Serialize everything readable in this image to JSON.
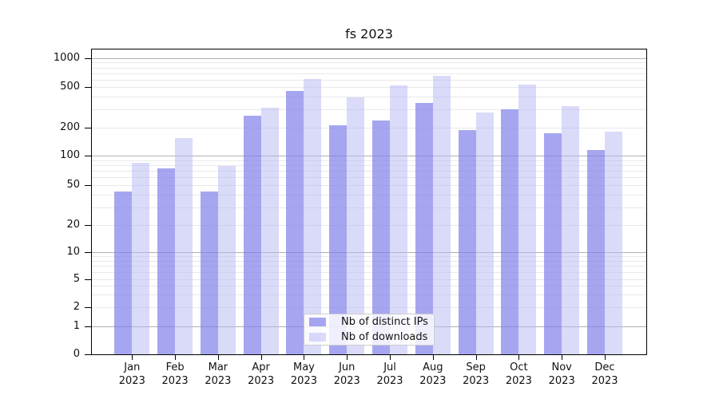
{
  "title": "fs 2023",
  "chart_data": {
    "type": "bar",
    "categories": [
      "Jan",
      "Feb",
      "Mar",
      "Apr",
      "May",
      "Jun",
      "Jul",
      "Aug",
      "Sep",
      "Oct",
      "Nov",
      "Dec"
    ],
    "category_subline": "2023",
    "series": [
      {
        "name": "Nb of distinct IPs",
        "color": "rgba(128,128,233,0.70)",
        "values": [
          43,
          75,
          43,
          260,
          455,
          210,
          235,
          350,
          190,
          300,
          175,
          115
        ]
      },
      {
        "name": "Nb of downloads",
        "color": "rgba(181,181,243,0.50)",
        "values": [
          85,
          155,
          78,
          315,
          610,
          395,
          520,
          650,
          280,
          530,
          325,
          180
        ]
      }
    ],
    "yticks": [
      0,
      1,
      2,
      5,
      10,
      20,
      50,
      100,
      200,
      500,
      1000
    ],
    "y_major_ticks": [
      1,
      10,
      100,
      1000
    ],
    "yscale": "symlog",
    "ylim": [
      0,
      1270
    ],
    "xlabel": "",
    "ylabel": "",
    "grid": true,
    "legend_position": "lower center",
    "colors": {
      "grid_major": "#b0b0b0",
      "grid_minor": "#e9e9ec",
      "spine": "#000000",
      "text": "#111111"
    }
  }
}
